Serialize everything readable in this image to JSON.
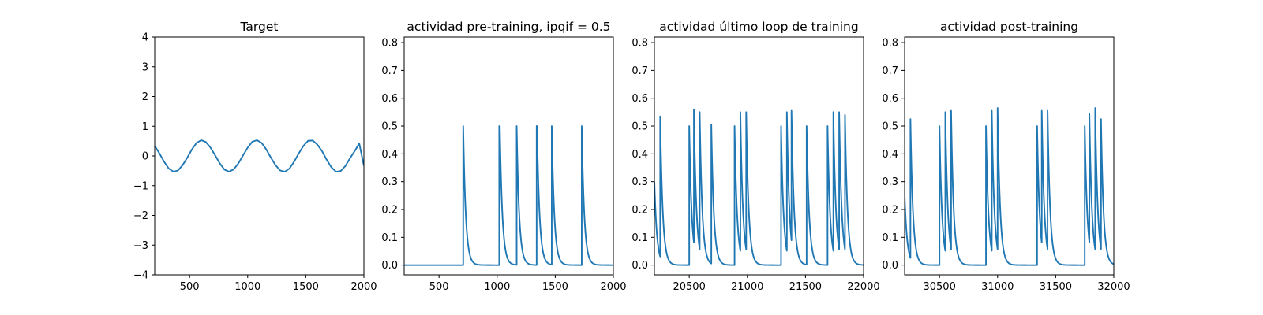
{
  "chart_data": [
    {
      "type": "line",
      "title": "Target",
      "xlabel": "",
      "ylabel": "",
      "xlim": [
        200,
        2000
      ],
      "ylim": [
        -4,
        4
      ],
      "xticks": [
        500,
        1000,
        1500,
        2000
      ],
      "yticks": [
        -4,
        -3,
        -2,
        -1,
        0,
        1,
        2,
        3,
        4
      ],
      "color": "#1f77b4",
      "grid": false,
      "series": [
        {
          "x": [
            200,
            240,
            280,
            320,
            360,
            400,
            440,
            480,
            520,
            560,
            600,
            640,
            680,
            720,
            760,
            800,
            840,
            880,
            920,
            960,
            1000,
            1040,
            1080,
            1120,
            1160,
            1200,
            1240,
            1280,
            1320,
            1360,
            1400,
            1440,
            1480,
            1520,
            1560,
            1600,
            1640,
            1680,
            1720,
            1760,
            1800,
            1840,
            1880,
            1920,
            1960,
            2000
          ],
          "y": [
            0.34,
            0.09,
            -0.19,
            -0.42,
            -0.53,
            -0.49,
            -0.31,
            -0.06,
            0.22,
            0.44,
            0.53,
            0.47,
            0.28,
            0.02,
            -0.25,
            -0.46,
            -0.53,
            -0.45,
            -0.25,
            0.02,
            0.28,
            0.48,
            0.53,
            0.44,
            0.22,
            -0.06,
            -0.31,
            -0.49,
            -0.53,
            -0.42,
            -0.19,
            0.09,
            0.34,
            0.51,
            0.52,
            0.38,
            0.16,
            -0.13,
            -0.38,
            -0.53,
            -0.51,
            -0.34,
            -0.08,
            0.16,
            0.42,
            -0.33
          ]
        }
      ]
    },
    {
      "type": "line",
      "title": "actividad pre-training, ipqif = 0.5",
      "xlabel": "",
      "ylabel": "",
      "xlim": [
        200,
        2000
      ],
      "ylim": [
        -0.035,
        0.82
      ],
      "xticks": [
        500,
        1000,
        1500,
        2000
      ],
      "yticks": [
        0.0,
        0.1,
        0.2,
        0.3,
        0.4,
        0.5,
        0.6,
        0.7,
        0.8
      ],
      "color": "#1f77b4",
      "grid": false,
      "baseline": 0.0,
      "spikes": [
        {
          "t": 708,
          "peak": 0.5
        },
        {
          "t": 1018,
          "peak": 0.5
        },
        {
          "t": 1023,
          "peak": 0.5
        },
        {
          "t": 1168,
          "peak": 0.5
        },
        {
          "t": 1340,
          "peak": 0.5
        },
        {
          "t": 1343,
          "peak": 0.5
        },
        {
          "t": 1470,
          "peak": 0.5
        },
        {
          "t": 1728,
          "peak": 0.5
        }
      ]
    },
    {
      "type": "line",
      "title": "actividad último loop de training",
      "xlabel": "",
      "ylabel": "",
      "xlim": [
        20200,
        22000
      ],
      "ylim": [
        -0.035,
        0.82
      ],
      "xticks": [
        20500,
        21000,
        21500,
        22000
      ],
      "yticks": [
        0.0,
        0.1,
        0.2,
        0.3,
        0.4,
        0.5,
        0.6,
        0.7,
        0.8
      ],
      "color": "#1f77b4",
      "grid": false,
      "initial": 0.3,
      "spikes": [
        {
          "t": 20250,
          "peak": 0.535
        },
        {
          "t": 20500,
          "peak": 0.5
        },
        {
          "t": 20540,
          "peak": 0.56
        },
        {
          "t": 20590,
          "peak": 0.55
        },
        {
          "t": 20690,
          "peak": 0.505
        },
        {
          "t": 20890,
          "peak": 0.5
        },
        {
          "t": 20940,
          "peak": 0.55
        },
        {
          "t": 20990,
          "peak": 0.55
        },
        {
          "t": 21290,
          "peak": 0.5
        },
        {
          "t": 21340,
          "peak": 0.55
        },
        {
          "t": 21380,
          "peak": 0.555
        },
        {
          "t": 21510,
          "peak": 0.5
        },
        {
          "t": 21690,
          "peak": 0.5
        },
        {
          "t": 21740,
          "peak": 0.55
        },
        {
          "t": 21790,
          "peak": 0.55
        },
        {
          "t": 21840,
          "peak": 0.54
        }
      ]
    },
    {
      "type": "line",
      "title": "actividad post-training",
      "xlabel": "",
      "ylabel": "",
      "xlim": [
        30200,
        32000
      ],
      "ylim": [
        -0.035,
        0.82
      ],
      "xticks": [
        30500,
        31000,
        31500,
        32000
      ],
      "yticks": [
        0.0,
        0.1,
        0.2,
        0.3,
        0.4,
        0.5,
        0.6,
        0.7,
        0.8
      ],
      "color": "#1f77b4",
      "grid": false,
      "initial": 0.25,
      "spikes": [
        {
          "t": 30250,
          "peak": 0.525
        },
        {
          "t": 30500,
          "peak": 0.5
        },
        {
          "t": 30550,
          "peak": 0.55
        },
        {
          "t": 30600,
          "peak": 0.555
        },
        {
          "t": 30900,
          "peak": 0.5
        },
        {
          "t": 30950,
          "peak": 0.555
        },
        {
          "t": 31000,
          "peak": 0.565
        },
        {
          "t": 31340,
          "peak": 0.5
        },
        {
          "t": 31380,
          "peak": 0.555
        },
        {
          "t": 31430,
          "peak": 0.555
        },
        {
          "t": 31750,
          "peak": 0.5
        },
        {
          "t": 31790,
          "peak": 0.545
        },
        {
          "t": 31840,
          "peak": 0.565
        },
        {
          "t": 31890,
          "peak": 0.525
        }
      ]
    }
  ]
}
